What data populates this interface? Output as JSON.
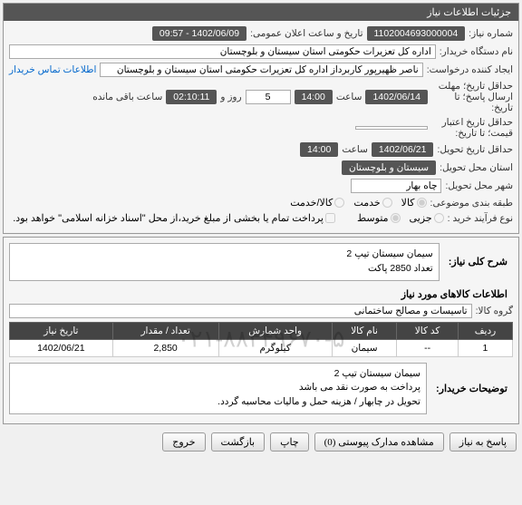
{
  "header": {
    "title": "جزئیات اطلاعات نیاز"
  },
  "fields": {
    "need_no_label": "شماره نیاز:",
    "need_no": "1102004693000004",
    "announce_label": "تاریخ و ساعت اعلان عمومی:",
    "announce_val": "1402/06/09 - 09:57",
    "buyer_label": "نام دستگاه خریدار:",
    "buyer_val": "اداره کل تعزیرات حکومتی استان سیستان و بلوچستان",
    "requester_label": "ایجاد کننده درخواست:",
    "requester_val": "ناصر ظهیرپور کاربرداز اداره کل تعزیرات حکومتی استان سیستان و بلوچستان",
    "contact_link": "اطلاعات تماس خریدار",
    "deadline_label": "حداقل تاریخ؛ مهلت ارسال پاسخ؛ تا تاریخ:",
    "deadline_date": "1402/06/14",
    "hour_label": "ساعت",
    "deadline_hour": "14:00",
    "day_label": "روز و",
    "day_val": "5",
    "remain_time": "02:10:11",
    "remain_label": "ساعت باقی مانده",
    "validity_label": "حداقل تاریخ اعتبار قیمت؛ تا تاریخ:",
    "delivery_label": "حداقل تاریخ تحویل:",
    "delivery_date": "1402/06/21",
    "delivery_hour": "14:00",
    "province_label": "استان محل تحویل:",
    "province_val": "سیستان و بلوچستان",
    "city_label": "شهر محل تحویل:",
    "city_val": "چاه بهار",
    "category_label": "طبقه بندی موضوعی:",
    "cat_goods": "کالا",
    "cat_service": "خدمت",
    "cat_goods_service": "کالا/خدمت",
    "process_label": "نوع فرآیند خرید :",
    "proc_minor": "جزیی",
    "proc_mid": "متوسط",
    "pay_note": "پرداخت تمام یا بخشی از مبلغ خرید،از محل \"اسناد خزانه اسلامی\" خواهد بود."
  },
  "summary": {
    "title_label": "شرح کلی نیاز:",
    "title_val": "سیمان سیستان تیپ 2\nتعداد 2850 پاکت",
    "goods_header": "اطلاعات کالاهای مورد نیاز",
    "group_label": "گروه کالا:",
    "group_val": "تاسیسات و مصالح ساختمانی"
  },
  "table": {
    "columns": [
      "ردیف",
      "کد کالا",
      "نام کالا",
      "واحد شمارش",
      "تعداد / مقدار",
      "تاریخ نیاز"
    ],
    "rows": [
      [
        "1",
        "--",
        "سیمان",
        "کیلوگرم",
        "2,850",
        "1402/06/21"
      ]
    ]
  },
  "buyer_notes": {
    "label": "توضیحات خریدار:",
    "text": "سیمان سیستان تیپ 2\nپرداخت به صورت نقد می باشد\nتحویل در چابهار / هزینه حمل و مالیات محاسبه گردد."
  },
  "buttons": {
    "respond": "پاسخ به نیاز",
    "attachments": "مشاهده مدارک پیوستی (0)",
    "print": "چاپ",
    "back": "بازگشت",
    "exit": "خروج"
  },
  "watermark": "۰۲۱-۸۸۳۴۹۶۷۰-۵"
}
